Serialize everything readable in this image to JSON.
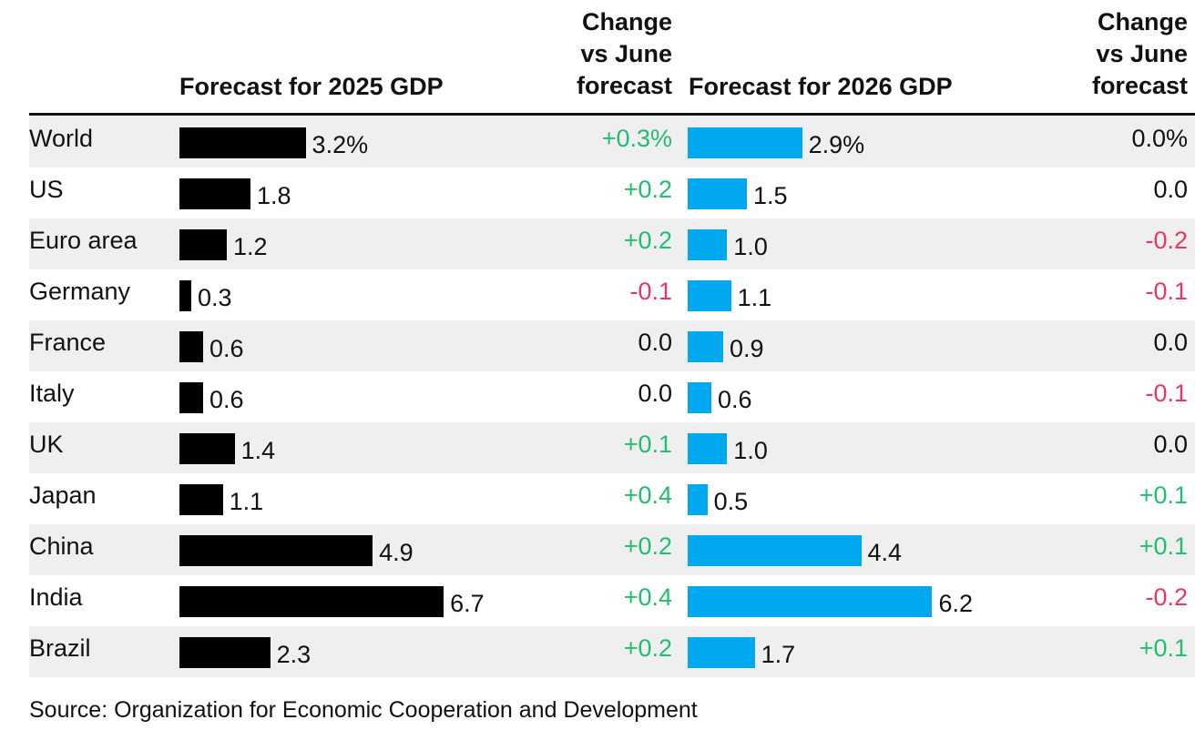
{
  "colors": {
    "bar_2025": "#000000",
    "bar_2026": "#00a8f0",
    "positive": "#1fbf6f",
    "negative": "#e8365d",
    "neutral": "#111111",
    "row_shade": "#efefef"
  },
  "headers": {
    "forecast_2025": "Forecast for 2025 GDP",
    "change_2025": "Change\nvs June\nforecast",
    "forecast_2026": "Forecast for 2026 GDP",
    "change_2026": "Change\nvs June\nforecast"
  },
  "source": "Source: Organization for Economic Cooperation and Development",
  "chart_data": {
    "type": "bar",
    "orientation": "horizontal",
    "categories": [
      "World",
      "US",
      "Euro area",
      "Germany",
      "France",
      "Italy",
      "UK",
      "Japan",
      "China",
      "India",
      "Brazil"
    ],
    "series": [
      {
        "name": "Forecast for 2025 GDP",
        "values": [
          3.2,
          1.8,
          1.2,
          0.3,
          0.6,
          0.6,
          1.4,
          1.1,
          4.9,
          6.7,
          2.3
        ],
        "labels": [
          "3.2%",
          "1.8",
          "1.2",
          "0.3",
          "0.6",
          "0.6",
          "1.4",
          "1.1",
          "4.9",
          "6.7",
          "2.3"
        ]
      },
      {
        "name": "Forecast for 2026 GDP",
        "values": [
          2.9,
          1.5,
          1.0,
          1.1,
          0.9,
          0.6,
          1.0,
          0.5,
          4.4,
          6.2,
          1.7
        ],
        "labels": [
          "2.9%",
          "1.5",
          "1.0",
          "1.1",
          "0.9",
          "0.6",
          "1.0",
          "0.5",
          "4.4",
          "6.2",
          "1.7"
        ]
      }
    ],
    "changes": [
      {
        "name": "Change vs June forecast (2025)",
        "values": [
          0.3,
          0.2,
          0.2,
          -0.1,
          0.0,
          0.0,
          0.1,
          0.4,
          0.2,
          0.4,
          0.2
        ],
        "labels": [
          "+0.3%",
          "+0.2",
          "+0.2",
          "-0.1",
          "0.0",
          "0.0",
          "+0.1",
          "+0.4",
          "+0.2",
          "+0.4",
          "+0.2"
        ]
      },
      {
        "name": "Change vs June forecast (2026)",
        "values": [
          0.0,
          0.0,
          -0.2,
          -0.1,
          0.0,
          -0.1,
          0.0,
          0.1,
          0.1,
          -0.2,
          0.1
        ],
        "labels": [
          "0.0%",
          "0.0",
          "-0.2",
          "-0.1",
          "0.0",
          "-0.1",
          "0.0",
          "+0.1",
          "+0.1",
          "-0.2",
          "+0.1"
        ]
      }
    ],
    "xlim": [
      0,
      6.7
    ],
    "grid": false,
    "legend": "none"
  }
}
